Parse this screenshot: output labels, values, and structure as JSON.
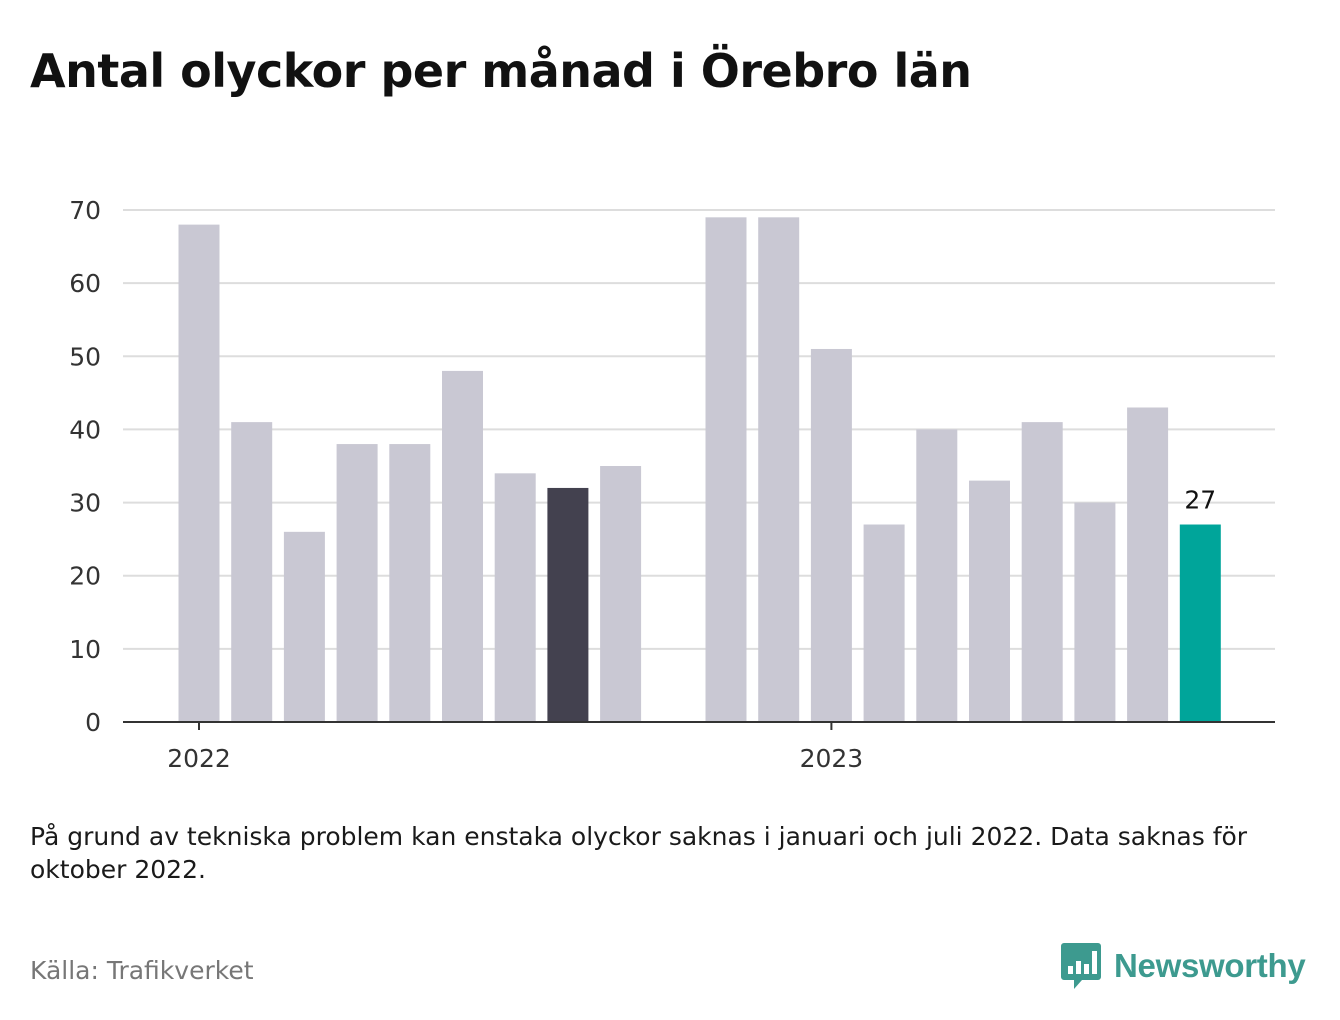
{
  "title": "Antal olyckor per månad i Örebro län",
  "note": "På grund av tekniska problem kan enstaka olyckor saknas i januari och juli 2022. Data saknas för oktober 2022.",
  "source": "Källa: Trafikverket",
  "brand": {
    "name": "Newsworthy",
    "color": "#3d9a8f",
    "icon": "newsworthy-logo-icon"
  },
  "chart_data": {
    "type": "bar",
    "title": "Antal olyckor per månad i Örebro län",
    "xlabel": "",
    "ylabel": "",
    "ylim": [
      0,
      70
    ],
    "yticks": [
      0,
      10,
      20,
      30,
      40,
      50,
      60,
      70
    ],
    "grid": true,
    "x_tick_labels": [
      "2022",
      "2023"
    ],
    "categories": [
      "2022-01",
      "2022-02",
      "2022-03",
      "2022-04",
      "2022-05",
      "2022-06",
      "2022-07",
      "2022-08",
      "2022-09",
      "2022-11",
      "2022-12",
      "2023-01",
      "2023-02",
      "2023-03",
      "2023-04",
      "2023-05",
      "2023-06",
      "2023-07",
      "2023-08"
    ],
    "values": [
      68,
      41,
      26,
      38,
      38,
      48,
      34,
      32,
      35,
      69,
      69,
      51,
      27,
      40,
      33,
      41,
      30,
      43,
      27
    ],
    "highlight_label": "27",
    "colors": {
      "default": "#c9c8d3",
      "highlight_dark": "#43414f",
      "highlight_accent": "#00a59a",
      "grid": "#dddddd",
      "axis": "#333333"
    },
    "bar_colors": [
      "default",
      "default",
      "default",
      "default",
      "default",
      "default",
      "default",
      "highlight_dark",
      "default",
      "default",
      "default",
      "default",
      "default",
      "default",
      "default",
      "default",
      "default",
      "default",
      "highlight_accent"
    ]
  }
}
